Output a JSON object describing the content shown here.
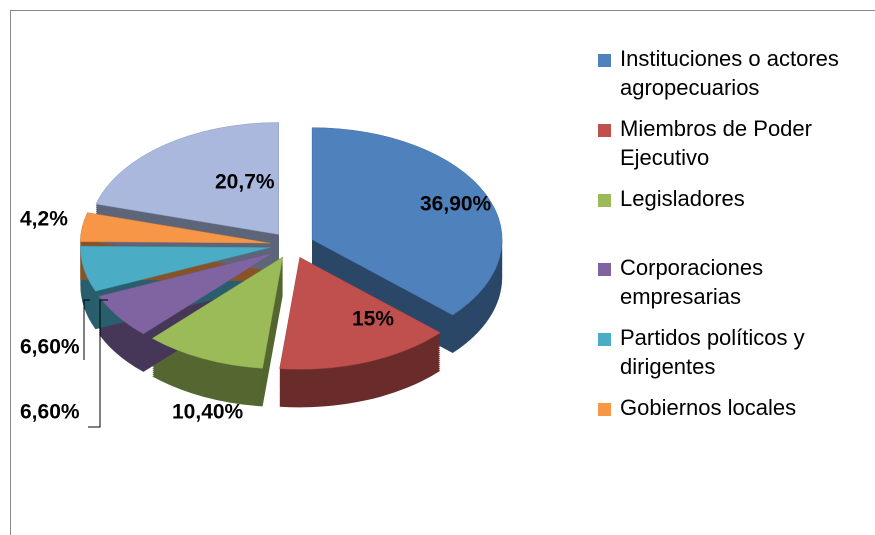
{
  "chart_data": {
    "type": "pie",
    "categories": [
      "Instituciones o actores agropecuarios",
      "Miembros de Poder Ejecutivo",
      "Legisladores",
      "Corporaciones empresarias",
      "Partidos políticos y dirigentes",
      "Gobiernos locales",
      null
    ],
    "values": [
      36.9,
      15,
      10.4,
      6.6,
      6.6,
      4.2,
      20.7
    ],
    "value_labels": [
      "36,90%",
      "15%",
      "10,40%",
      "6,60%",
      "6,60%",
      "4,2%",
      "20,7%"
    ],
    "colors": [
      "#4f81bd",
      "#c0504d",
      "#9bbb59",
      "#8064a2",
      "#4bacc6",
      "#f79646",
      "#a9b8dc"
    ]
  }
}
